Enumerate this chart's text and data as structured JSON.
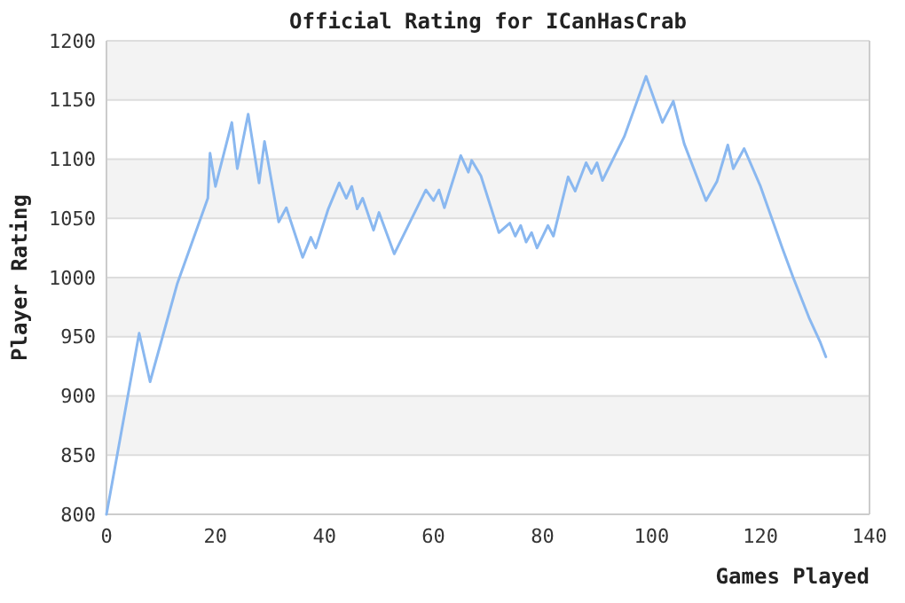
{
  "chart_data": {
    "type": "line",
    "title": "Official Rating for ICanHasCrab",
    "xlabel": "Games Played",
    "ylabel": "Player Rating",
    "xlim": [
      0,
      140
    ],
    "xticks": [
      0,
      20,
      40,
      60,
      80,
      100,
      120,
      140
    ],
    "ylim": [
      800,
      1200
    ],
    "yticks": [
      800,
      850,
      900,
      950,
      1000,
      1050,
      1100,
      1150,
      1200
    ],
    "grid": "y",
    "series": [
      {
        "color": "#8ab8f0",
        "x": [
          0,
          6,
          8,
          13,
          18.6,
          19,
          20,
          23,
          24,
          26,
          28,
          29,
          31.6,
          33,
          36,
          37.5,
          38.4,
          40.7,
          42.7,
          44,
          45,
          46,
          47,
          49,
          50,
          52.8,
          58.6,
          60,
          61,
          62,
          65,
          66.4,
          67,
          68.7,
          72,
          74,
          75,
          76,
          77,
          78,
          79,
          81,
          82,
          84.7,
          86,
          88,
          89,
          90,
          91,
          95,
          99,
          102,
          104,
          106,
          110,
          112,
          114,
          115,
          117,
          120,
          124,
          126,
          129,
          131,
          132
        ],
        "values": [
          800,
          953,
          912,
          995,
          1067,
          1105,
          1077,
          1131,
          1092,
          1138,
          1080,
          1115,
          1047,
          1059,
          1017,
          1034,
          1025,
          1058,
          1080,
          1067,
          1077,
          1058,
          1067,
          1040,
          1055,
          1020,
          1074,
          1065,
          1074,
          1059,
          1103,
          1089,
          1099,
          1086,
          1038,
          1046,
          1035,
          1044,
          1030,
          1038,
          1025,
          1044,
          1035,
          1085,
          1073,
          1097,
          1088,
          1097,
          1082,
          1119,
          1170,
          1131,
          1149,
          1113,
          1065,
          1081,
          1112,
          1092,
          1109,
          1077,
          1025,
          1000,
          965,
          945,
          933
        ]
      }
    ]
  }
}
